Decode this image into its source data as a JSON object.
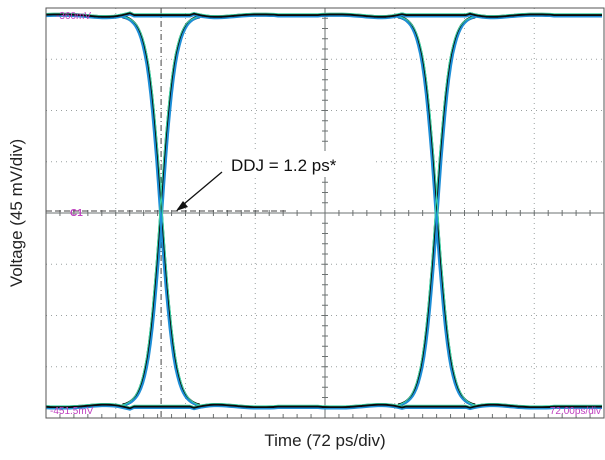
{
  "chart_data": {
    "type": "eye-diagram",
    "xlabel": "Time (72 ps/div)",
    "ylabel": "Voltage (45 mV/div)",
    "top_left_label": "-360mV",
    "bottom_left_label": "-451.5mV",
    "bottom_right_label": "72.00ps/div",
    "channel_marker": "C1",
    "annotation": "DDJ = 1.2 ps*",
    "divisions": {
      "x": 8,
      "y": 8
    },
    "crossings_div": [
      1.65,
      5.6
    ],
    "center_level_div": 4,
    "colors": {
      "grid": "#9aa0a0",
      "trace": "#1e8fd8",
      "trace_dark": "#0a0a0a",
      "trace_accent": "#3bd6a6",
      "marker": "#c040c0"
    }
  }
}
